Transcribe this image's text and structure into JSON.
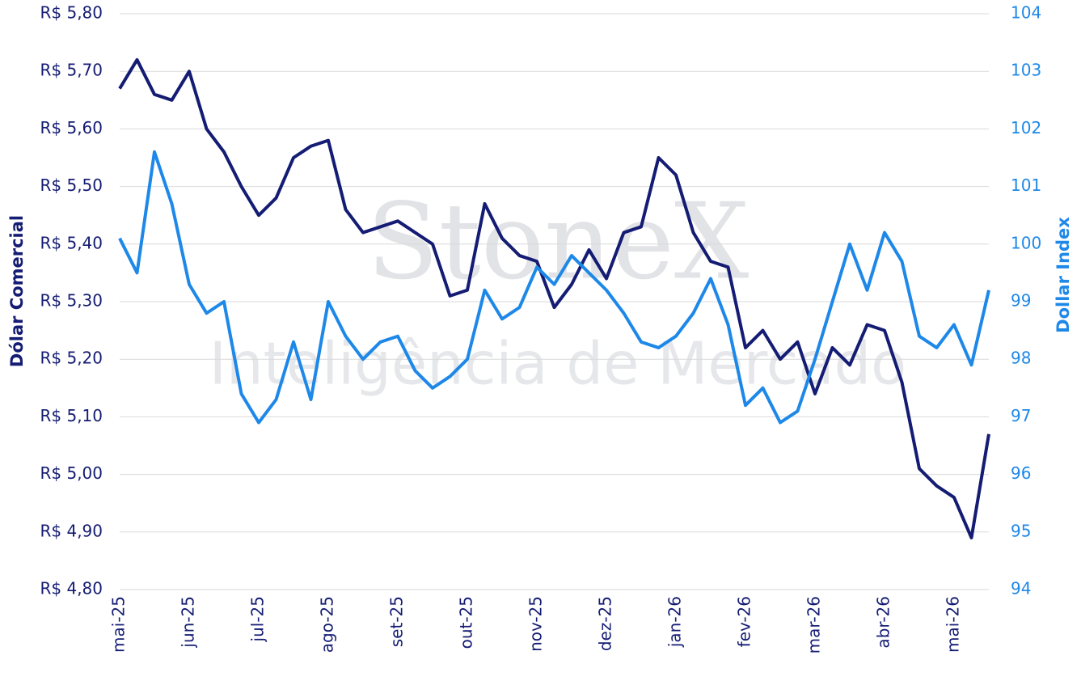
{
  "chart_data": {
    "type": "line",
    "watermark": [
      "StoneX",
      "Inteligência de Mercado"
    ],
    "y_label": "Dólar Comercial",
    "y2_label": "Dollar Index",
    "categories": [
      "mai-25",
      null,
      null,
      null,
      "jun-25",
      null,
      null,
      null,
      "jul-25",
      null,
      null,
      null,
      "ago-25",
      null,
      null,
      null,
      "set-25",
      null,
      null,
      null,
      "out-25",
      null,
      null,
      null,
      "nov-25",
      null,
      null,
      null,
      "dez-25",
      null,
      null,
      null,
      "jan-26",
      null,
      null,
      null,
      "fev-26",
      null,
      null,
      null,
      "mar-26",
      null,
      null,
      null,
      "abr-26",
      null,
      null,
      null,
      "mai-26",
      null,
      null
    ],
    "series": [
      {
        "name": "Dólar Comercial",
        "color": "#141c73",
        "values": [
          5.67,
          5.72,
          5.66,
          5.65,
          5.7,
          5.6,
          5.56,
          5.5,
          5.45,
          5.48,
          5.55,
          5.57,
          5.58,
          5.46,
          5.42,
          5.43,
          5.44,
          5.42,
          5.4,
          5.31,
          5.32,
          5.47,
          5.41,
          5.38,
          5.37,
          5.29,
          5.33,
          5.39,
          5.34,
          5.42,
          5.43,
          5.55,
          5.52,
          5.42,
          5.37,
          5.36,
          5.22,
          5.25,
          5.2,
          5.23,
          5.14,
          5.22,
          5.19,
          5.26,
          5.25,
          5.16,
          5.01,
          4.98,
          4.96,
          4.89,
          5.07
        ]
      },
      {
        "name": "Dollar Index",
        "color": "#1e88e8",
        "axis": "y2",
        "values": [
          100.1,
          99.5,
          101.6,
          100.7,
          99.3,
          98.8,
          99.0,
          97.4,
          96.9,
          97.3,
          98.3,
          97.3,
          99.0,
          98.4,
          98.0,
          98.3,
          98.4,
          97.8,
          97.5,
          97.7,
          98.0,
          99.2,
          98.7,
          98.9,
          99.6,
          99.3,
          99.8,
          99.5,
          99.2,
          98.8,
          98.3,
          98.2,
          98.4,
          98.8,
          99.4,
          98.6,
          97.2,
          97.5,
          96.9,
          97.1,
          98.0,
          99.0,
          100.0,
          99.2,
          100.2,
          99.7,
          98.4,
          98.2,
          98.6,
          97.9,
          99.2
        ]
      }
    ],
    "ylim": [
      4.8,
      5.8
    ],
    "yticks": [
      {
        "value": 4.8,
        "label": "R$ 4,80"
      },
      {
        "value": 4.9,
        "label": "R$ 4,90"
      },
      {
        "value": 5.0,
        "label": "R$ 5,00"
      },
      {
        "value": 5.1,
        "label": "R$ 5,10"
      },
      {
        "value": 5.2,
        "label": "R$ 5,20"
      },
      {
        "value": 5.3,
        "label": "R$ 5,30"
      },
      {
        "value": 5.4,
        "label": "R$ 5,40"
      },
      {
        "value": 5.5,
        "label": "R$ 5,50"
      },
      {
        "value": 5.6,
        "label": "R$ 5,60"
      },
      {
        "value": 5.7,
        "label": "R$ 5,70"
      },
      {
        "value": 5.8,
        "label": "R$ 5,80"
      }
    ],
    "y2lim": [
      94,
      104
    ],
    "y2ticks": [
      94,
      95,
      96,
      97,
      98,
      99,
      100,
      101,
      102,
      103,
      104
    ],
    "grid": true
  }
}
